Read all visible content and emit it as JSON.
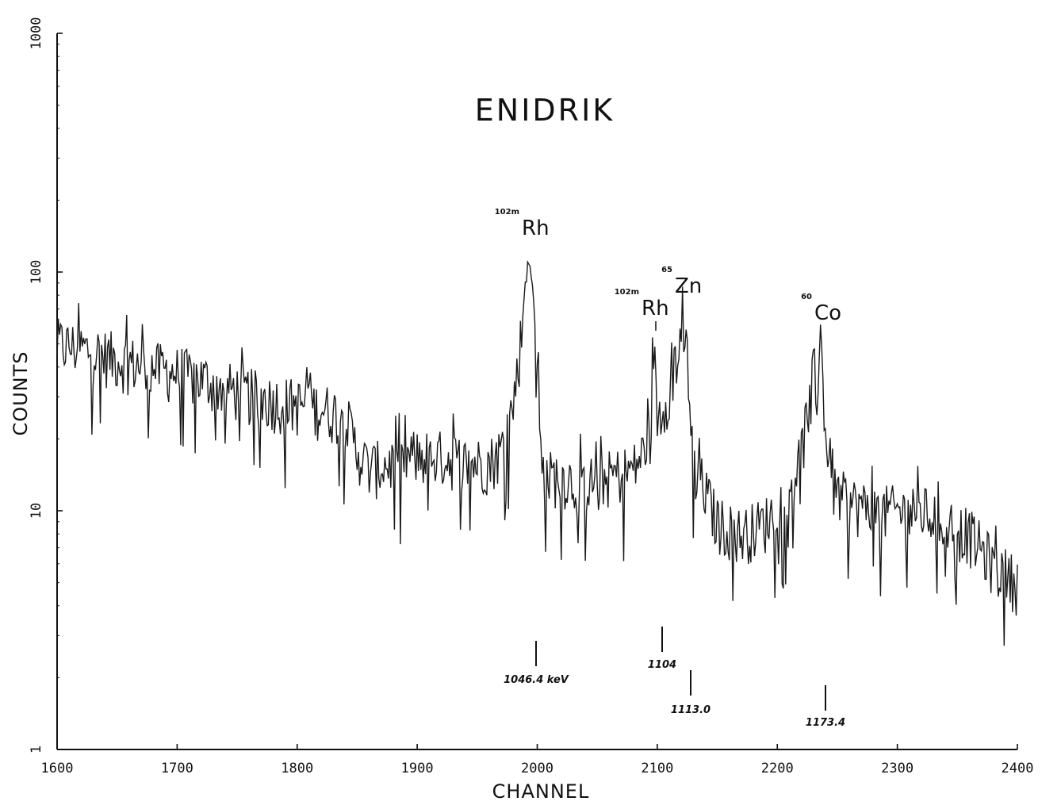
{
  "chart_data": {
    "type": "line",
    "title": "ENIDRIK",
    "xlabel": "CHANNEL",
    "ylabel": "COUNTS",
    "xlim": [
      1600,
      2400
    ],
    "ylim": [
      1,
      1000
    ],
    "yscale": "log",
    "xticks": [
      "1600",
      "1700",
      "1800",
      "1900",
      "2000",
      "2100",
      "2200",
      "2300",
      "2400"
    ],
    "yticks": [
      "1",
      "10",
      "100",
      "1000"
    ],
    "grid": false,
    "legend": "none",
    "series": [
      {
        "x": [
          1600,
          1620,
          1640,
          1660,
          1680,
          1700,
          1720,
          1740,
          1760,
          1780,
          1800,
          1820,
          1840,
          1850,
          1860,
          1880,
          1900,
          1920,
          1940,
          1960,
          1970,
          1980,
          1985,
          1990,
          1993,
          1996,
          2000,
          2005,
          2020,
          2040,
          2060,
          2080,
          2090,
          2097,
          2100,
          2105,
          2110,
          2115,
          2120,
          2125,
          2130,
          2135,
          2140,
          2150,
          2170,
          2190,
          2210,
          2220,
          2228,
          2233,
          2236,
          2238,
          2242,
          2248,
          2260,
          2280,
          2300,
          2320,
          2340,
          2360,
          2380,
          2400
        ],
        "values": [
          50,
          48,
          45,
          42,
          40,
          38,
          36,
          33,
          31,
          29,
          28,
          27,
          25,
          18,
          15,
          16,
          17,
          17,
          16,
          16,
          18,
          28,
          45,
          85,
          110,
          95,
          40,
          14,
          14,
          13,
          14,
          15,
          18,
          50,
          25,
          28,
          32,
          42,
          58,
          45,
          15,
          14,
          12,
          9,
          8,
          9,
          12,
          18,
          30,
          32,
          55,
          34,
          16,
          12,
          11,
          10,
          10,
          10,
          9,
          8,
          6,
          5
        ]
      }
    ],
    "annotations": [
      {
        "label_sup": "102m",
        "label": "Rh",
        "x": 1993
      },
      {
        "label_sup": "102m",
        "label": "Rh",
        "x": 2097
      },
      {
        "label_sup": "65",
        "label": "Zn",
        "x": 2120
      },
      {
        "label_sup": "60",
        "label": "Co",
        "x": 2236
      }
    ],
    "energy_markers": [
      {
        "x": 1998,
        "label": "1046.4 keV"
      },
      {
        "x": 2102,
        "label": "1104"
      },
      {
        "x": 2126,
        "label": "1113.0"
      },
      {
        "x": 2240,
        "label": "1173.4"
      }
    ]
  }
}
